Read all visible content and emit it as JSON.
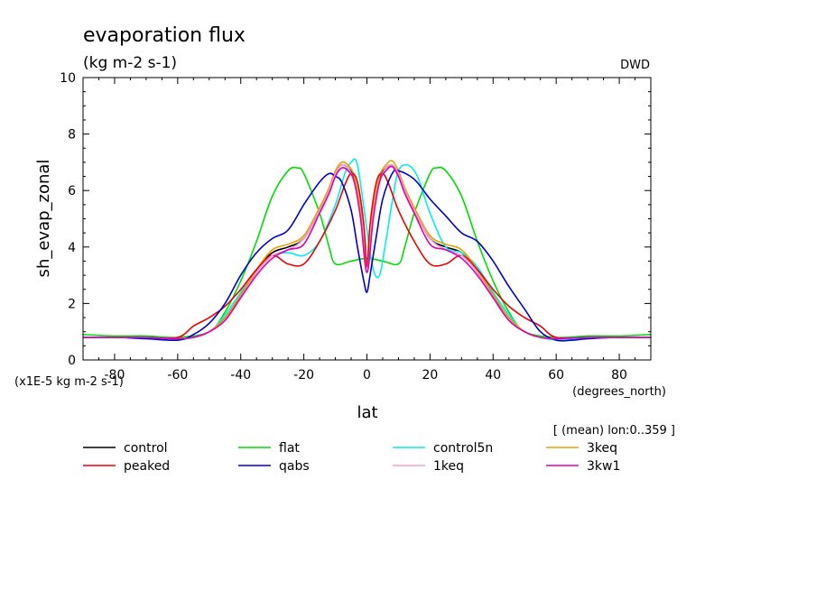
{
  "chart_data": {
    "type": "line",
    "title": "evaporation flux",
    "subtitle": "(kg m-2 s-1)",
    "source_tag": "DWD",
    "xlabel": "lat",
    "x_units": "(degrees_north)",
    "ylabel": "sh_evap_zonal",
    "y_scale_note": "(x1E-5 kg m-2 s-1)",
    "average_note": "[ (mean) lon:0..359 ]",
    "xlim": [
      -90,
      90
    ],
    "ylim": [
      0,
      10
    ],
    "x_ticks": [
      -80,
      -60,
      -40,
      -20,
      0,
      20,
      40,
      60,
      80
    ],
    "y_ticks": [
      0,
      2,
      4,
      6,
      8,
      10
    ],
    "legend_placement": "bottom",
    "series": [
      {
        "name": "control",
        "color": "#000000",
        "x": [
          -90,
          -80,
          -70,
          -60,
          -55,
          -50,
          -45,
          -40,
          -35,
          -30,
          -25,
          -20,
          -15,
          -12,
          -10,
          -8,
          -6,
          -4,
          -2,
          0,
          2,
          4,
          6,
          8,
          10,
          12,
          15,
          20,
          25,
          30,
          35,
          40,
          45,
          50,
          55,
          60,
          70,
          80,
          90
        ],
        "y": [
          0.8,
          0.8,
          0.8,
          0.75,
          0.8,
          1.0,
          1.5,
          2.3,
          3.2,
          3.8,
          4.0,
          4.3,
          5.3,
          6.0,
          6.6,
          6.9,
          6.8,
          6.4,
          5.2,
          3.1,
          5.2,
          6.4,
          6.8,
          6.9,
          6.6,
          6.0,
          5.3,
          4.3,
          4.0,
          3.8,
          3.2,
          2.3,
          1.5,
          1.0,
          0.8,
          0.75,
          0.8,
          0.8,
          0.8
        ]
      },
      {
        "name": "flat",
        "color": "#00dd00",
        "x": [
          -90,
          -80,
          -70,
          -60,
          -50,
          -45,
          -40,
          -35,
          -30,
          -25,
          -22,
          -20,
          -15,
          -12,
          -10,
          -5,
          0,
          5,
          10,
          12,
          15,
          20,
          22,
          25,
          30,
          35,
          40,
          45,
          50,
          60,
          70,
          80,
          90
        ],
        "y": [
          0.9,
          0.85,
          0.85,
          0.8,
          1.0,
          1.7,
          2.8,
          4.2,
          5.8,
          6.7,
          6.8,
          6.6,
          5.2,
          4.0,
          3.4,
          3.5,
          3.6,
          3.5,
          3.4,
          4.0,
          5.2,
          6.6,
          6.8,
          6.7,
          5.8,
          4.2,
          2.8,
          1.7,
          1.0,
          0.8,
          0.85,
          0.85,
          0.9
        ]
      },
      {
        "name": "control5n",
        "color": "#00eeee",
        "x": [
          -90,
          -80,
          -70,
          -60,
          -50,
          -45,
          -40,
          -35,
          -30,
          -25,
          -20,
          -15,
          -10,
          -7,
          -5,
          -3,
          0,
          2,
          4,
          6,
          8,
          10,
          13,
          16,
          20,
          25,
          30,
          35,
          40,
          45,
          50,
          60,
          70,
          80,
          90
        ],
        "y": [
          0.8,
          0.8,
          0.8,
          0.7,
          1.0,
          1.6,
          2.4,
          3.2,
          3.7,
          3.8,
          3.7,
          4.2,
          5.5,
          6.6,
          7.0,
          6.9,
          4.6,
          3.2,
          3.0,
          4.2,
          5.6,
          6.7,
          6.9,
          6.5,
          5.2,
          4.0,
          3.8,
          3.3,
          2.4,
          1.6,
          1.0,
          0.7,
          0.8,
          0.8,
          0.8
        ]
      },
      {
        "name": "3keq",
        "color": "#e8a000",
        "x": [
          -90,
          -80,
          -70,
          -60,
          -55,
          -50,
          -45,
          -40,
          -35,
          -30,
          -25,
          -20,
          -15,
          -12,
          -10,
          -8,
          -6,
          -4,
          -2,
          0,
          2,
          4,
          6,
          8,
          10,
          12,
          15,
          20,
          25,
          30,
          35,
          40,
          45,
          50,
          55,
          60,
          70,
          80,
          90
        ],
        "y": [
          0.8,
          0.8,
          0.8,
          0.75,
          0.8,
          1.0,
          1.5,
          2.3,
          3.2,
          3.9,
          4.1,
          4.4,
          5.4,
          6.1,
          6.7,
          7.0,
          6.9,
          6.5,
          5.3,
          3.3,
          5.3,
          6.5,
          6.9,
          7.05,
          6.7,
          6.1,
          5.4,
          4.4,
          4.1,
          3.9,
          3.2,
          2.3,
          1.5,
          1.0,
          0.8,
          0.75,
          0.8,
          0.8,
          0.8
        ]
      },
      {
        "name": "peaked",
        "color": "#ee0000",
        "x": [
          -90,
          -80,
          -70,
          -60,
          -55,
          -50,
          -45,
          -40,
          -35,
          -30,
          -25,
          -20,
          -15,
          -10,
          -7,
          -5,
          -3,
          -1,
          0,
          1,
          3,
          5,
          7,
          10,
          15,
          20,
          25,
          30,
          35,
          40,
          45,
          50,
          55,
          60,
          70,
          80,
          90
        ],
        "y": [
          0.8,
          0.8,
          0.8,
          0.8,
          1.2,
          1.5,
          1.9,
          2.5,
          3.2,
          3.7,
          3.4,
          3.4,
          4.2,
          5.3,
          6.2,
          6.6,
          6.3,
          4.8,
          3.3,
          4.8,
          6.3,
          6.6,
          6.2,
          5.3,
          4.2,
          3.4,
          3.4,
          3.7,
          3.2,
          2.5,
          1.9,
          1.5,
          1.2,
          0.8,
          0.8,
          0.8,
          0.8
        ]
      },
      {
        "name": "qabs",
        "color": "#0000cc",
        "x": [
          -90,
          -80,
          -70,
          -60,
          -55,
          -50,
          -45,
          -40,
          -35,
          -30,
          -25,
          -20,
          -15,
          -12,
          -10,
          -8,
          -5,
          -3,
          -1,
          0,
          1,
          3,
          5,
          8,
          10,
          15,
          20,
          25,
          30,
          35,
          40,
          45,
          50,
          55,
          60,
          65,
          70,
          80,
          90
        ],
        "y": [
          0.8,
          0.8,
          0.75,
          0.7,
          0.9,
          1.3,
          2.0,
          3.0,
          3.8,
          4.3,
          4.6,
          5.5,
          6.3,
          6.6,
          6.5,
          6.3,
          5.3,
          4.0,
          2.8,
          2.4,
          3.0,
          4.4,
          5.7,
          6.6,
          6.7,
          6.4,
          5.7,
          5.1,
          4.5,
          4.2,
          3.5,
          2.6,
          1.8,
          1.0,
          0.7,
          0.7,
          0.75,
          0.8,
          0.8
        ]
      },
      {
        "name": "1keq",
        "color": "#f0a0d0",
        "x": [
          -90,
          -80,
          -70,
          -60,
          -55,
          -50,
          -45,
          -40,
          -35,
          -30,
          -25,
          -20,
          -15,
          -12,
          -10,
          -8,
          -6,
          -4,
          -2,
          0,
          2,
          4,
          6,
          8,
          10,
          12,
          15,
          20,
          25,
          30,
          35,
          40,
          45,
          50,
          55,
          60,
          70,
          80,
          90
        ],
        "y": [
          0.8,
          0.8,
          0.8,
          0.75,
          0.8,
          1.0,
          1.4,
          2.2,
          3.1,
          3.7,
          3.9,
          4.3,
          5.3,
          6.0,
          6.6,
          6.9,
          6.8,
          6.3,
          5.1,
          3.2,
          5.1,
          6.3,
          6.8,
          6.9,
          6.6,
          6.0,
          5.3,
          4.3,
          3.9,
          3.7,
          3.1,
          2.2,
          1.4,
          1.0,
          0.8,
          0.75,
          0.8,
          0.8,
          0.8
        ]
      },
      {
        "name": "3kw1",
        "color": "#dd00bb",
        "x": [
          -90,
          -80,
          -70,
          -60,
          -55,
          -50,
          -45,
          -40,
          -35,
          -30,
          -25,
          -20,
          -15,
          -12,
          -10,
          -8,
          -6,
          -4,
          -2,
          0,
          2,
          4,
          6,
          8,
          10,
          12,
          15,
          20,
          25,
          30,
          35,
          40,
          45,
          50,
          55,
          60,
          70,
          80,
          90
        ],
        "y": [
          0.8,
          0.8,
          0.8,
          0.75,
          0.8,
          1.0,
          1.4,
          2.2,
          3.0,
          3.6,
          3.9,
          4.1,
          5.2,
          5.9,
          6.5,
          6.8,
          6.7,
          6.3,
          5.0,
          3.1,
          5.0,
          6.3,
          6.7,
          6.85,
          6.5,
          5.9,
          5.2,
          4.1,
          3.9,
          3.6,
          3.0,
          2.2,
          1.4,
          1.0,
          0.8,
          0.75,
          0.8,
          0.8,
          0.8
        ]
      }
    ]
  }
}
